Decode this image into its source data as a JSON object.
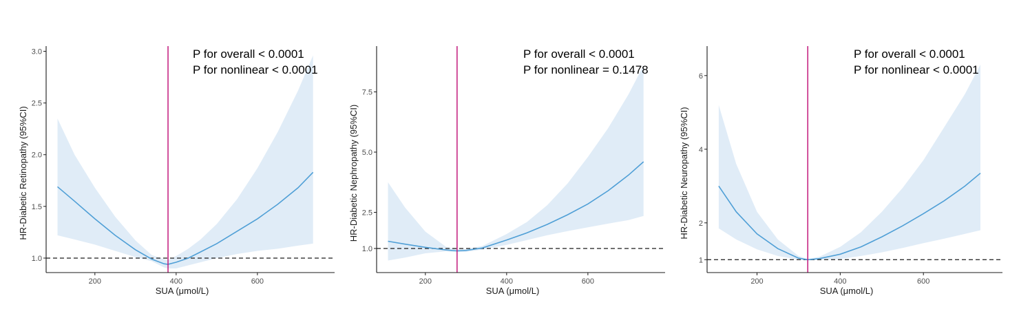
{
  "colors": {
    "curve": "#4f9fd6",
    "ribbon": "#dbe9f6",
    "vline": "#c2187b",
    "refline": "#1a1a1a",
    "axis": "#1a1a1a"
  },
  "chart_data": [
    {
      "type": "line",
      "ylabel": "HR-Diabetic Retinopathy (95%CI)",
      "xlabel": "SUA (μmol/L)",
      "xlim": [
        80,
        790
      ],
      "ylim": [
        0.86,
        3.05
      ],
      "xticks": [
        200,
        400,
        600
      ],
      "yticks": [
        1.0,
        1.5,
        2.0,
        2.5,
        3.0
      ],
      "ytick_labels": [
        "1.0",
        "1.5",
        "2.0",
        "2.5",
        "3.0"
      ],
      "reference_y": 1.0,
      "vline_x": 380,
      "annotations": [
        "P for overall < 0.0001",
        "P for nonlinear < 0.0001"
      ],
      "series": [
        {
          "x": [
            108,
            150,
            200,
            250,
            300,
            340,
            370,
            380,
            400,
            430,
            460,
            500,
            550,
            600,
            650,
            700,
            737
          ],
          "y": [
            1.69,
            1.55,
            1.38,
            1.22,
            1.08,
            0.99,
            0.945,
            0.94,
            0.96,
            1.0,
            1.06,
            1.14,
            1.26,
            1.38,
            1.52,
            1.68,
            1.83
          ],
          "lower": [
            1.22,
            1.18,
            1.13,
            1.07,
            1.01,
            0.97,
            0.91,
            0.9,
            0.9,
            0.93,
            0.96,
            1.0,
            1.04,
            1.07,
            1.09,
            1.12,
            1.14
          ],
          "upper": [
            2.35,
            2.0,
            1.68,
            1.4,
            1.17,
            1.03,
            0.99,
            0.98,
            1.02,
            1.09,
            1.18,
            1.33,
            1.57,
            1.87,
            2.22,
            2.62,
            2.96
          ]
        }
      ]
    },
    {
      "type": "line",
      "ylabel": "HR-Diabetic Nephropathy (95%CI)",
      "xlabel": "SUA (μmol/L)",
      "xlim": [
        80,
        790
      ],
      "ylim": [
        0.0,
        9.4
      ],
      "xticks": [
        200,
        400,
        600
      ],
      "yticks": [
        1.0,
        2.5,
        5.0,
        7.5
      ],
      "ytick_labels": [
        "1.0",
        "2.5",
        "5.0",
        "7.5"
      ],
      "reference_y": 1.0,
      "vline_x": 278,
      "annotations": [
        "P for overall < 0.0001",
        "P for nonlinear = 0.1478"
      ],
      "series": [
        {
          "x": [
            108,
            150,
            200,
            250,
            278,
            300,
            340,
            400,
            450,
            500,
            550,
            600,
            650,
            700,
            737
          ],
          "y": [
            1.3,
            1.18,
            1.05,
            0.94,
            0.9,
            0.92,
            1.02,
            1.35,
            1.65,
            2.0,
            2.4,
            2.85,
            3.4,
            4.05,
            4.6
          ],
          "lower": [
            0.5,
            0.62,
            0.8,
            0.88,
            0.85,
            0.86,
            0.95,
            1.15,
            1.35,
            1.55,
            1.72,
            1.88,
            2.03,
            2.18,
            2.35
          ],
          "upper": [
            3.75,
            2.7,
            1.7,
            1.08,
            0.96,
            0.98,
            1.1,
            1.6,
            2.1,
            2.8,
            3.7,
            4.8,
            6.0,
            7.4,
            8.6
          ]
        }
      ]
    },
    {
      "type": "line",
      "ylabel": "HR-Diabetic Neuropathy (95%CI)",
      "xlabel": "SUA (μmol/L)",
      "xlim": [
        80,
        790
      ],
      "ylim": [
        0.65,
        6.8
      ],
      "xticks": [
        200,
        400,
        600
      ],
      "yticks": [
        1,
        2,
        4,
        6
      ],
      "ytick_labels": [
        "1",
        "2",
        "4",
        "6"
      ],
      "reference_y": 1.0,
      "vline_x": 322,
      "annotations": [
        "P for overall < 0.0001",
        "P for nonlinear < 0.0001"
      ],
      "series": [
        {
          "x": [
            108,
            150,
            200,
            250,
            300,
            322,
            350,
            400,
            450,
            500,
            550,
            600,
            650,
            700,
            737
          ],
          "y": [
            3.0,
            2.3,
            1.7,
            1.3,
            1.04,
            1.0,
            1.03,
            1.15,
            1.35,
            1.62,
            1.92,
            2.25,
            2.6,
            3.0,
            3.35
          ],
          "lower": [
            1.85,
            1.55,
            1.28,
            1.1,
            1.0,
            0.98,
            0.99,
            1.02,
            1.1,
            1.2,
            1.32,
            1.45,
            1.57,
            1.7,
            1.8
          ],
          "upper": [
            5.2,
            3.6,
            2.3,
            1.55,
            1.1,
            1.02,
            1.08,
            1.35,
            1.75,
            2.3,
            2.95,
            3.7,
            4.6,
            5.5,
            6.3
          ]
        }
      ]
    }
  ]
}
